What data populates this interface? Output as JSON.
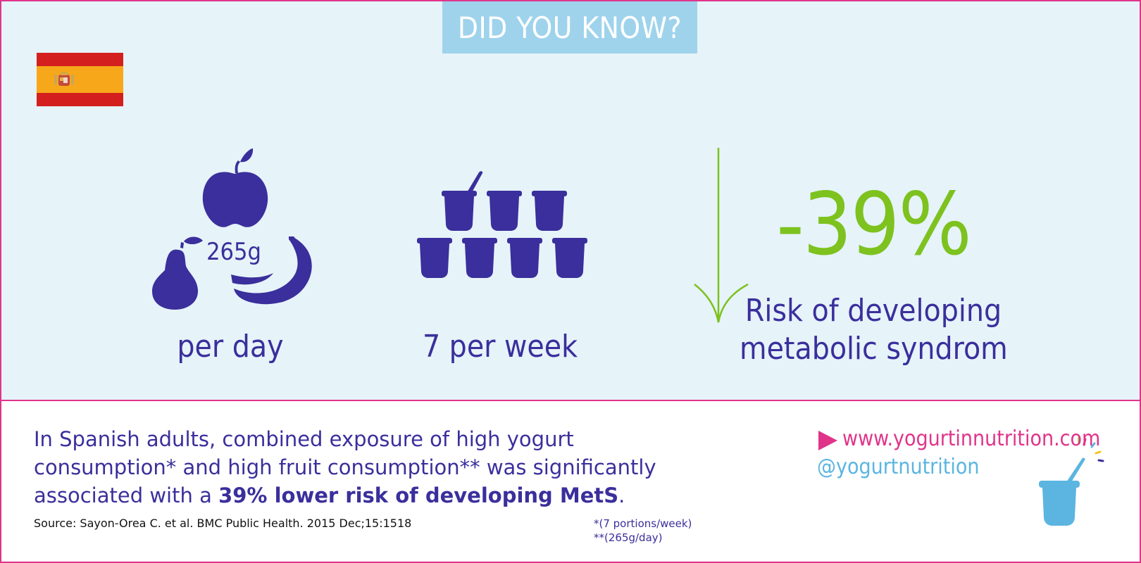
{
  "banner": {
    "title": "DID YOU KNOW?"
  },
  "flag": {
    "country": "Spain",
    "colors": {
      "red": "#d3201f",
      "yellow": "#f7a81a"
    }
  },
  "stats": {
    "fruit": {
      "amount": "265g",
      "label": "per day"
    },
    "yogurt": {
      "label": "7 per week"
    },
    "risk": {
      "value": "-39%",
      "label_line1": "Risk of developing",
      "label_line2": "metabolic syndrom"
    }
  },
  "body": {
    "line1": "In Spanish adults, combined exposure of high yogurt",
    "line2": "consumption* and high fruit consumption** was significantly",
    "line3_prefix": "associated with a ",
    "line3_bold": "39% lower risk of developing MetS",
    "line3_suffix": "."
  },
  "source": "Source: Sayon-Orea C. et al. BMC Public Health. 2015 Dec;15:1518",
  "footnotes": {
    "yogurt": "*(7 portions/week)",
    "fruit": "**(265g/day)"
  },
  "links": {
    "website": "www.yogurtinnutrition.com",
    "twitter": "@yogurtnutrition"
  },
  "icons": [
    "apple-icon",
    "pear-icon",
    "banana-icon",
    "yogurt-cup-icon",
    "down-arrow-icon",
    "play-arrow-icon",
    "yogurt-splash-icon"
  ],
  "colors": {
    "accent_blue": "#3a2f9c",
    "green": "#7dc21e",
    "pink": "#e0348a",
    "light_blue": "#9fd3ec",
    "sky": "#5bb5e0"
  }
}
